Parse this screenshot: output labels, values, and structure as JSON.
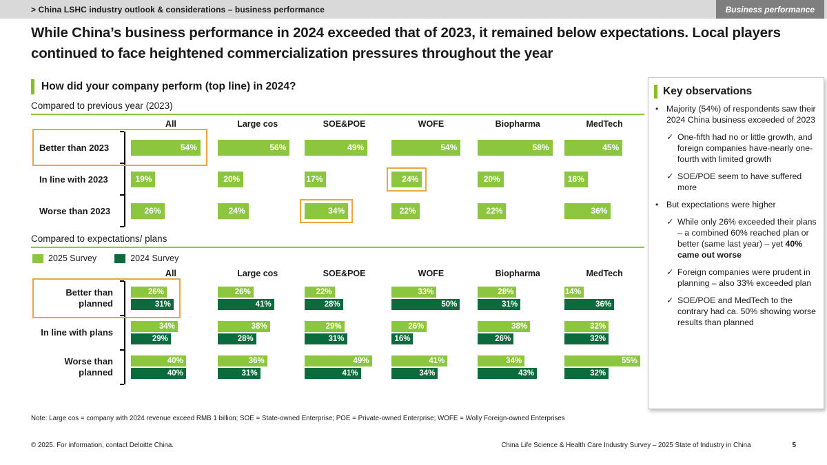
{
  "header": {
    "breadcrumb": "> China LSHC industry outlook & considerations – business performance",
    "tab": "Business performance"
  },
  "title": "While China’s business performance in 2024 exceeded that of 2023, it remained below expectations. Local players continued to face heightened commercialization pressures throughout the year",
  "question": "How did your company perform (top line) in 2024?",
  "colors": {
    "light_green": "#8CC63F",
    "dark_green": "#0C6B3D",
    "highlight_orange": "#EDA63B"
  },
  "chart_data": [
    {
      "type": "bar",
      "title": "Compared to previous year (2023)",
      "categories": [
        "All",
        "Large cos",
        "SOE&POE",
        "WOFE",
        "Biopharma",
        "MedTech"
      ],
      "rows": [
        {
          "label": "Better than 2023",
          "values": [
            54,
            56,
            49,
            54,
            58,
            45
          ]
        },
        {
          "label": "In line with 2023",
          "values": [
            19,
            20,
            17,
            24,
            20,
            18
          ]
        },
        {
          "label": "Worse than 2023",
          "values": [
            26,
            24,
            34,
            22,
            22,
            36
          ]
        }
      ],
      "unit": "%",
      "axis_max": 62,
      "highlights": [
        {
          "row": 0,
          "col": 0,
          "include_label": true
        },
        {
          "row": 1,
          "col": 3,
          "include_label": false
        },
        {
          "row": 2,
          "col": 2,
          "include_label": false
        }
      ]
    },
    {
      "type": "bar",
      "title": "Compared to expectations/ plans",
      "legend": [
        "2025 Survey",
        "2024 Survey"
      ],
      "categories": [
        "All",
        "Large cos",
        "SOE&POE",
        "WOFE",
        "Biopharma",
        "MedTech"
      ],
      "rows": [
        {
          "label": "Better than planned",
          "series": [
            {
              "name": "2025 Survey",
              "values": [
                26,
                26,
                22,
                33,
                28,
                14
              ]
            },
            {
              "name": "2024 Survey",
              "values": [
                31,
                41,
                28,
                50,
                31,
                36
              ]
            }
          ]
        },
        {
          "label": "In line with plans",
          "series": [
            {
              "name": "2025 Survey",
              "values": [
                34,
                38,
                29,
                26,
                38,
                32
              ]
            },
            {
              "name": "2024 Survey",
              "values": [
                29,
                28,
                31,
                16,
                26,
                32
              ]
            }
          ]
        },
        {
          "label": "Worse than planned",
          "series": [
            {
              "name": "2025 Survey",
              "values": [
                40,
                36,
                49,
                41,
                34,
                55
              ]
            },
            {
              "name": "2024 Survey",
              "values": [
                40,
                31,
                41,
                34,
                43,
                32
              ]
            }
          ]
        }
      ],
      "unit": "%",
      "axis_max": 58,
      "highlights": [
        {
          "row": 0,
          "col": 0,
          "include_label": true
        }
      ]
    }
  ],
  "key_observations": {
    "title": "Key observations",
    "items": [
      {
        "level": 1,
        "text": "Majority (54%) of respondents saw their 2024 China business exceeded of 2023"
      },
      {
        "level": 2,
        "text": "One-fifth had no or little growth, and foreign companies have-nearly one-fourth with limited growth"
      },
      {
        "level": 2,
        "text": "SOE/POE seem to have suffered more"
      },
      {
        "level": 1,
        "text": "But expectations were higher"
      },
      {
        "level": 2,
        "text": "While only 26% exceeded their plans – a combined 60% reached plan or better (same last year) – yet ",
        "bold": "40% came out worse"
      },
      {
        "level": 2,
        "text": "Foreign companies were prudent in planning – also 33% exceeded plan"
      },
      {
        "level": 2,
        "text": "SOE/POE and MedTech to the contrary had ca. 50% showing worse results than planned"
      }
    ]
  },
  "note": "Note: Large cos = company with 2024 revenue exceed RMB 1 billion; SOE = State-owned Enterprise; POE = Private-owned Enterprise; WOFE = Wolly Foreign-owned Enterprises",
  "footer": {
    "copyright": "© 2025. For information, contact Deloitte China.",
    "source": "China Life Science & Health Care Industry Survey – 2025 State of Industry in China",
    "page": "5"
  }
}
